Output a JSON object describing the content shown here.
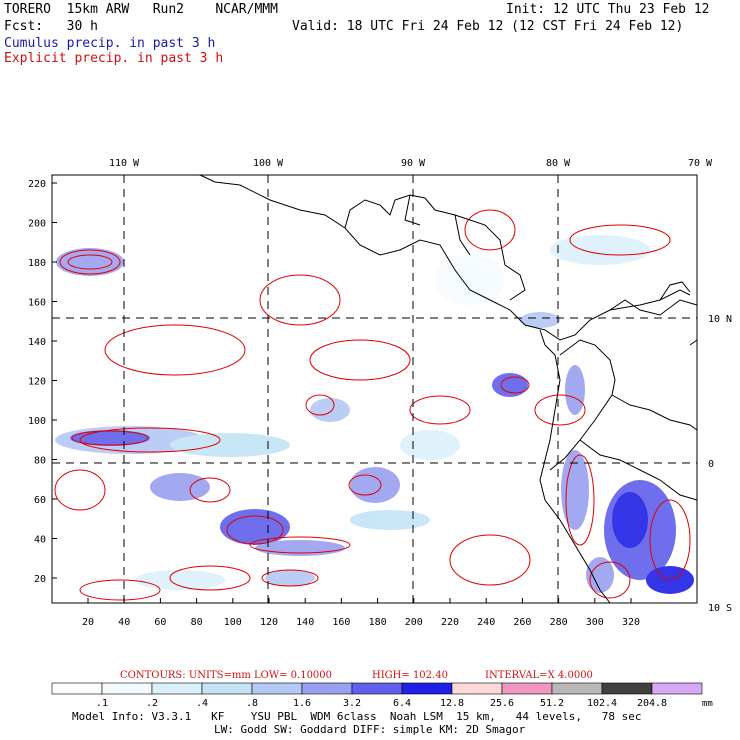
{
  "header": {
    "line1_left": "TORERO  15km ARW   Run2    NCAR/MMM",
    "line1_right": "Init: 12 UTC Thu 23 Feb 12",
    "line2_left": "Fcst:   30 h",
    "line2_right": "Valid: 18 UTC Fri 24 Feb 12 (12 CST Fri 24 Feb 12)",
    "field1": "Cumulus precip. in past 3 h",
    "field2": "Explicit precip. in past 3 h"
  },
  "colors": {
    "field1": "#1a1aa6",
    "field2": "#d01010",
    "contour": "#e00000",
    "land_outline": "#000000"
  },
  "lon_labels": [
    "110 W",
    "100 W",
    "90 W",
    "80 W",
    "70 W"
  ],
  "lat_labels": [
    "10 N",
    "0",
    "10 S"
  ],
  "y_ticks": [
    "220",
    "200",
    "180",
    "160",
    "140",
    "120",
    "100",
    "80",
    "60",
    "40",
    "20"
  ],
  "x_ticks": [
    "20",
    "40",
    "60",
    "80",
    "100",
    "120",
    "140",
    "160",
    "180",
    "200",
    "220",
    "240",
    "260",
    "280",
    "300",
    "320"
  ],
  "contour_info": {
    "label": "CONTOURS:  UNITS=mm  LOW= 0.10000",
    "high": "HIGH=  102.40",
    "interval": "INTERVAL=X  4.0000"
  },
  "colorbar": {
    "labels": [
      ".1",
      ".2",
      ".4",
      ".8",
      "1.6",
      "3.2",
      "6.4",
      "12.8",
      "25.6",
      "51.2",
      "102.4",
      "204.8"
    ],
    "unit": "mm",
    "colors": [
      "#ffffff",
      "#f4fbff",
      "#dcf0fa",
      "#c4e4f6",
      "#b4c8f4",
      "#9aa0f0",
      "#6060ec",
      "#2020e6",
      "#ffd8d8",
      "#f098c0",
      "#b8b8b8",
      "#404040",
      "#d8a8f4"
    ]
  },
  "footer": {
    "line1": "Model Info: V3.3.1   KF    YSU PBL  WDM 6class  Noah LSM  15 km,   44 levels,   78 sec",
    "line2": "LW: Godd SW: Goddard DIFF: simple KM: 2D Smagor"
  }
}
